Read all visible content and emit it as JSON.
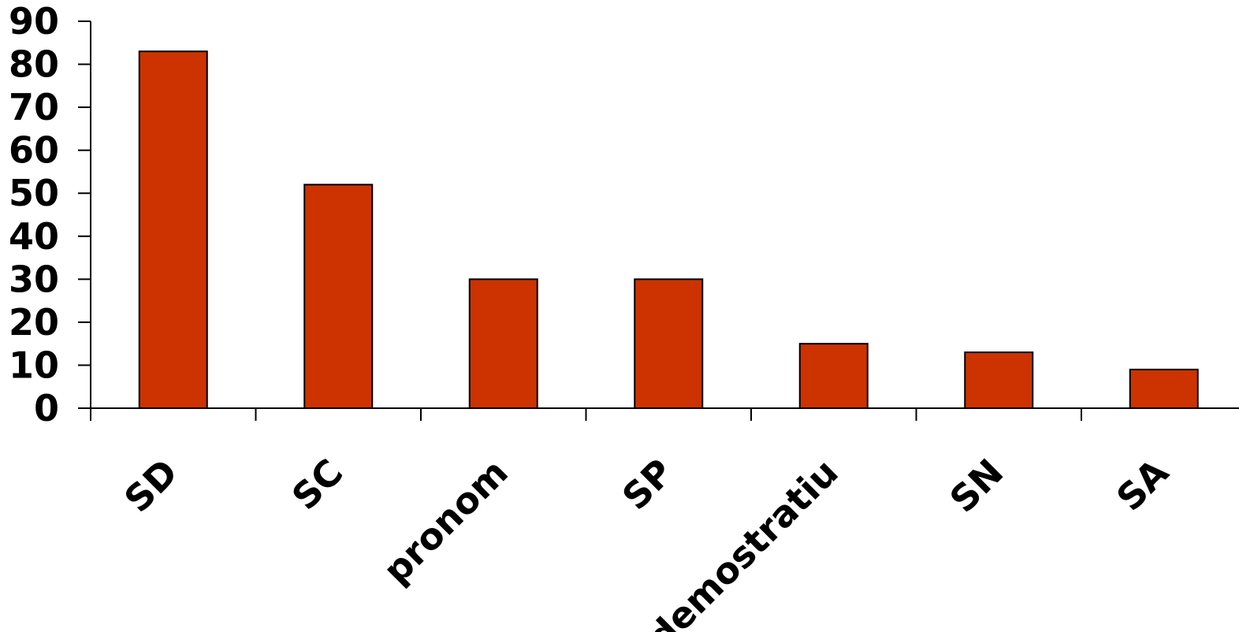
{
  "chart_data": {
    "type": "bar",
    "categories": [
      "SD",
      "SC",
      "pronom",
      "SP",
      "demostratiu",
      "SN",
      "SA"
    ],
    "values": [
      83,
      52,
      30,
      30,
      15,
      13,
      9
    ],
    "title": "",
    "xlabel": "",
    "ylabel": "",
    "ylim": [
      0,
      90
    ],
    "yticks": [
      0,
      10,
      20,
      30,
      40,
      50,
      60,
      70,
      80,
      90
    ],
    "grid": false,
    "legend": "none",
    "bar_color": "#CC3300",
    "edge_color": "#000000"
  }
}
